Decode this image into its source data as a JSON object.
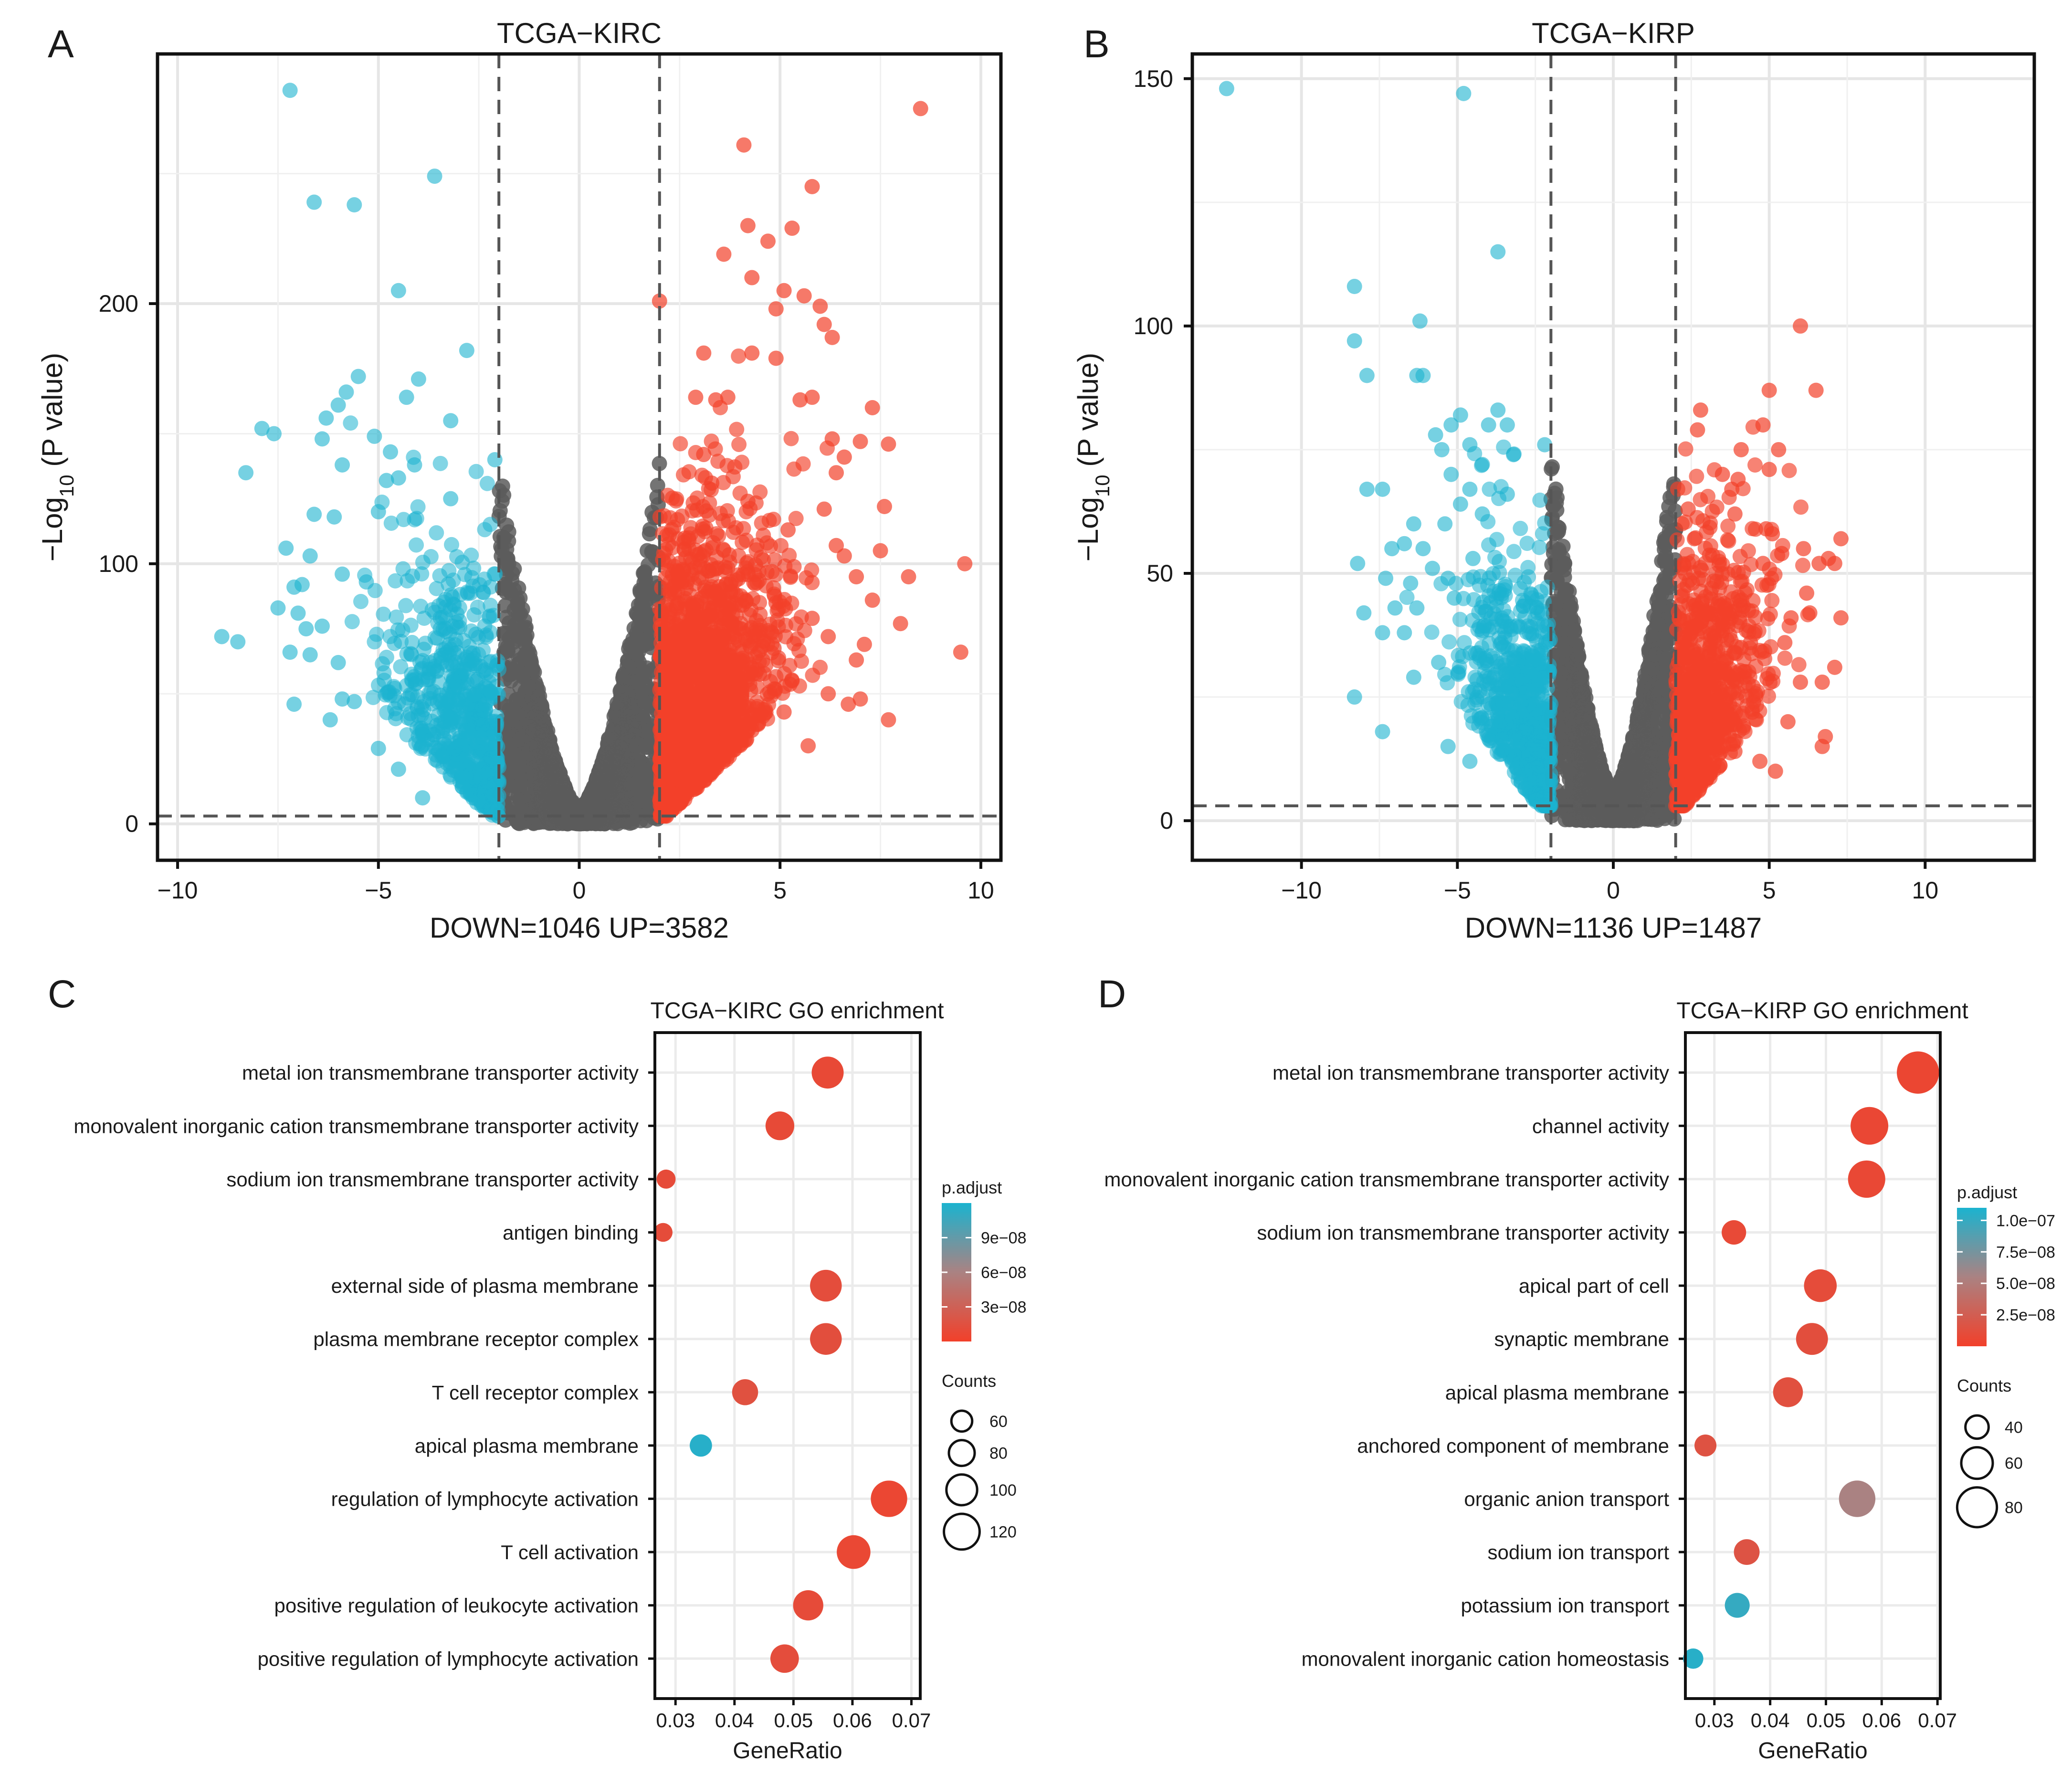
{
  "chart_data": [
    {
      "panel_label": "A",
      "type": "scatter",
      "subtype": "volcano",
      "title": "TCGA−KIRC",
      "ylabel_prefix": "−Log",
      "ylabel_sub": "10",
      "ylabel_suffix": " (P value)",
      "xlabel": "DOWN=1046   UP=3582",
      "xlim": [
        -10.5,
        10.5
      ],
      "ylim": [
        -14,
        296
      ],
      "xticks": [
        -10,
        -5,
        0,
        5,
        10
      ],
      "xtick_labels": [
        "−10",
        "−5",
        "0",
        "5",
        "10"
      ],
      "yticks": [
        0,
        100,
        200
      ],
      "ytick_labels": [
        "0",
        "100",
        "200"
      ],
      "fc_threshold": [
        -2,
        2
      ],
      "p_threshold": 3,
      "counts": {
        "down": 1046,
        "up": 3582
      },
      "colors": {
        "down": "#1bb3cf",
        "up": "#f2402a",
        "ns": "#5c5c5c"
      },
      "highlight_points": {
        "down": [
          [
            -7.2,
            282
          ],
          [
            -3.6,
            249
          ],
          [
            -6.6,
            239
          ],
          [
            -5.6,
            238
          ],
          [
            -4.5,
            205
          ],
          [
            -2.8,
            182
          ],
          [
            -5.5,
            172
          ],
          [
            -4.0,
            171
          ],
          [
            -5.8,
            166
          ],
          [
            -4.3,
            164
          ],
          [
            -6.0,
            161
          ],
          [
            -6.3,
            156
          ],
          [
            -7.9,
            152
          ],
          [
            -5.1,
            149
          ],
          [
            -6.4,
            148
          ],
          [
            -4.7,
            143
          ],
          [
            -4.1,
            138
          ],
          [
            -2.1,
            140
          ],
          [
            -5.9,
            138
          ],
          [
            -8.3,
            135
          ],
          [
            -7.6,
            150
          ],
          [
            -3.2,
            155
          ],
          [
            -6.6,
            119
          ],
          [
            -6.1,
            118
          ],
          [
            -5.0,
            120
          ],
          [
            -3.2,
            125
          ],
          [
            -4.8,
            132
          ],
          [
            -4.5,
            133
          ],
          [
            -7.3,
            106
          ],
          [
            -6.7,
            103
          ],
          [
            -5.9,
            96
          ],
          [
            -5.3,
            93
          ],
          [
            -7.1,
            91
          ],
          [
            -6.9,
            92
          ],
          [
            -7.5,
            83
          ],
          [
            -7.0,
            81
          ],
          [
            -6.4,
            76
          ],
          [
            -6.8,
            75
          ],
          [
            -8.9,
            72
          ],
          [
            -8.5,
            70
          ],
          [
            -7.2,
            66
          ],
          [
            -6.7,
            65
          ],
          [
            -6.0,
            62
          ],
          [
            -7.1,
            46
          ],
          [
            -6.2,
            40
          ],
          [
            -5.9,
            48
          ],
          [
            -5.6,
            47
          ],
          [
            -5.0,
            29
          ],
          [
            -4.5,
            21
          ],
          [
            -3.9,
            10
          ]
        ],
        "up": [
          [
            8.5,
            275
          ],
          [
            4.1,
            261
          ],
          [
            5.8,
            245
          ],
          [
            4.2,
            230
          ],
          [
            5.3,
            229
          ],
          [
            4.7,
            224
          ],
          [
            3.6,
            219
          ],
          [
            4.3,
            210
          ],
          [
            5.1,
            205
          ],
          [
            5.6,
            203
          ],
          [
            2.0,
            201
          ],
          [
            6.0,
            199
          ],
          [
            4.9,
            198
          ],
          [
            6.1,
            192
          ],
          [
            3.1,
            181
          ],
          [
            6.3,
            187
          ],
          [
            4.3,
            181
          ],
          [
            4.9,
            179
          ],
          [
            7.3,
            160
          ],
          [
            3.7,
            164
          ],
          [
            5.5,
            163
          ],
          [
            5.8,
            164
          ],
          [
            2.9,
            164
          ],
          [
            3.4,
            163
          ],
          [
            6.3,
            148
          ],
          [
            7.0,
            147
          ],
          [
            7.7,
            146
          ],
          [
            3.1,
            142
          ],
          [
            6.6,
            141
          ],
          [
            3.3,
            131
          ],
          [
            6.4,
            135
          ],
          [
            6.1,
            121
          ],
          [
            7.6,
            122
          ],
          [
            4.2,
            124
          ],
          [
            5.2,
            113
          ],
          [
            6.4,
            107
          ],
          [
            7.5,
            105
          ],
          [
            6.6,
            103
          ],
          [
            9.6,
            100
          ],
          [
            8.2,
            95
          ],
          [
            6.9,
            95
          ],
          [
            7.3,
            86
          ],
          [
            8.0,
            77
          ],
          [
            4.9,
            85
          ],
          [
            5.8,
            79
          ],
          [
            6.2,
            72
          ],
          [
            7.1,
            69
          ],
          [
            9.5,
            66
          ],
          [
            4.3,
            60
          ],
          [
            5.3,
            55
          ],
          [
            6.2,
            50
          ],
          [
            7.0,
            48
          ],
          [
            7.7,
            40
          ],
          [
            6.7,
            46
          ],
          [
            5.1,
            43
          ],
          [
            4.3,
            36
          ],
          [
            3.4,
            22
          ],
          [
            2.6,
            17
          ],
          [
            5.7,
            30
          ],
          [
            6.9,
            63
          ]
        ]
      }
    },
    {
      "panel_label": "B",
      "type": "scatter",
      "subtype": "volcano",
      "title": "TCGA−KIRP",
      "ylabel_prefix": "−Log",
      "ylabel_sub": "10",
      "ylabel_suffix": " (P value)",
      "xlabel": "DOWN=1136   UP=1487",
      "xlim": [
        -13.5,
        13.5
      ],
      "ylim": [
        -8,
        155
      ],
      "xticks": [
        -10,
        -5,
        0,
        5,
        10
      ],
      "xtick_labels": [
        "−10",
        "−5",
        "0",
        "5",
        "10"
      ],
      "yticks": [
        0,
        50,
        100,
        150
      ],
      "ytick_labels": [
        "0",
        "50",
        "100",
        "150"
      ],
      "fc_threshold": [
        -2,
        2
      ],
      "p_threshold": 3,
      "counts": {
        "down": 1136,
        "up": 1487
      },
      "colors": {
        "down": "#1bb3cf",
        "up": "#f2402a",
        "ns": "#5c5c5c"
      },
      "highlight_points": {
        "down": [
          [
            -12.4,
            148
          ],
          [
            -4.8,
            147
          ],
          [
            -3.7,
            115
          ],
          [
            -8.3,
            108
          ],
          [
            -6.2,
            101
          ],
          [
            -8.3,
            97
          ],
          [
            -7.9,
            90
          ],
          [
            -6.3,
            90
          ],
          [
            -6.1,
            90
          ],
          [
            -4.9,
            82
          ],
          [
            -3.7,
            83
          ],
          [
            -3.4,
            80
          ],
          [
            -5.2,
            80
          ],
          [
            -4.0,
            80
          ],
          [
            -5.7,
            78
          ],
          [
            -4.6,
            76
          ],
          [
            -3.2,
            74
          ],
          [
            -5.5,
            75
          ],
          [
            -4.2,
            72
          ],
          [
            -2.2,
            76
          ],
          [
            -5.2,
            70
          ],
          [
            -4.6,
            67
          ],
          [
            -7.9,
            67
          ],
          [
            -7.4,
            67
          ],
          [
            -4.9,
            64
          ],
          [
            -3.4,
            66
          ],
          [
            -6.4,
            60
          ],
          [
            -5.4,
            60
          ],
          [
            -4.2,
            62
          ],
          [
            -7.1,
            55
          ],
          [
            -6.7,
            56
          ],
          [
            -6.1,
            55
          ],
          [
            -5.8,
            51
          ],
          [
            -4.5,
            53
          ],
          [
            -8.2,
            52
          ],
          [
            -7.3,
            49
          ],
          [
            -6.5,
            48
          ],
          [
            -5.3,
            49
          ],
          [
            -7.0,
            43
          ],
          [
            -8.0,
            42
          ],
          [
            -6.3,
            43
          ],
          [
            -5.1,
            45
          ],
          [
            -7.4,
            38
          ],
          [
            -6.7,
            38
          ],
          [
            -5.6,
            32
          ],
          [
            -6.4,
            29
          ],
          [
            -8.3,
            25
          ],
          [
            -7.4,
            18
          ],
          [
            -5.3,
            15
          ],
          [
            -4.6,
            12
          ]
        ],
        "up": [
          [
            6.0,
            100
          ],
          [
            6.5,
            87
          ],
          [
            5.0,
            87
          ],
          [
            2.8,
            83
          ],
          [
            4.8,
            80
          ],
          [
            2.7,
            79
          ],
          [
            4.1,
            75
          ],
          [
            5.3,
            75
          ],
          [
            5.0,
            71
          ],
          [
            3.5,
            70
          ],
          [
            4.0,
            69
          ],
          [
            3.8,
            67
          ],
          [
            2.4,
            63
          ],
          [
            3.9,
            62
          ],
          [
            5.1,
            58
          ],
          [
            4.9,
            59
          ],
          [
            2.6,
            57
          ],
          [
            5.4,
            54
          ],
          [
            6.1,
            55
          ],
          [
            7.3,
            57
          ],
          [
            6.6,
            52
          ],
          [
            6.9,
            53
          ],
          [
            7.1,
            52
          ],
          [
            3.3,
            50
          ],
          [
            4.8,
            52
          ],
          [
            6.2,
            46
          ],
          [
            7.3,
            41
          ],
          [
            5.7,
            41
          ],
          [
            6.3,
            42
          ],
          [
            5.5,
            36
          ],
          [
            4.4,
            36
          ],
          [
            7.1,
            31
          ],
          [
            6.7,
            28
          ],
          [
            6.0,
            28
          ],
          [
            3.2,
            40
          ],
          [
            4.1,
            35
          ],
          [
            2.9,
            30
          ],
          [
            6.8,
            17
          ],
          [
            6.7,
            15
          ],
          [
            5.6,
            20
          ],
          [
            3.4,
            18
          ],
          [
            4.7,
            12
          ],
          [
            5.2,
            10
          ],
          [
            3.9,
            14
          ],
          [
            4.5,
            24
          ]
        ]
      }
    },
    {
      "panel_label": "C",
      "type": "scatter",
      "subtype": "dotplot",
      "title": "TCGA−KIRC GO enrichment",
      "xlabel": "GeneRatio",
      "xlim": [
        0.0265,
        0.0715
      ],
      "xticks": [
        0.03,
        0.04,
        0.05,
        0.06,
        0.07
      ],
      "xtick_labels": [
        "0.03",
        "0.04",
        "0.05",
        "0.06",
        "0.07"
      ],
      "categories": [
        "metal ion transmembrane transporter activity",
        "monovalent inorganic cation transmembrane transporter activity",
        "sodium ion transmembrane transporter activity",
        "antigen binding",
        "external side of plasma membrane",
        "plasma membrane receptor complex",
        "T cell receptor complex",
        "apical plasma membrane",
        "regulation of lymphocyte activation",
        "T cell activation",
        "positive regulation of leukocyte activation",
        "positive regulation of lymphocyte activation"
      ],
      "gene_ratio": [
        0.0558,
        0.0477,
        0.0284,
        0.0279,
        0.0555,
        0.0555,
        0.0418,
        0.0343,
        0.0662,
        0.0602,
        0.0525,
        0.0485
      ],
      "counts": [
        105,
        92,
        53,
        52,
        104,
        104,
        81,
        66,
        123,
        112,
        98,
        91
      ],
      "p_adjust": [
        8e-09,
        9e-09,
        1e-08,
        1.1e-08,
        1.2e-08,
        1.3e-08,
        1.5e-08,
        1.15e-07,
        6e-09,
        7e-09,
        1e-08,
        1.2e-08
      ],
      "legend": {
        "color_title": "p.adjust",
        "color_ticks": [
          9e-08,
          6e-08,
          3e-08
        ],
        "color_tick_labels": [
          "9e−08",
          "6e−08",
          "3e−08"
        ],
        "color_range": [
          0,
          1.2e-07
        ],
        "size_title": "Counts",
        "size_values": [
          60,
          80,
          100,
          120
        ],
        "size_labels": [
          "60",
          "80",
          "100",
          "120"
        ],
        "position": "right"
      },
      "colors": {
        "low": "#f2402a",
        "high": "#1bb3cf"
      }
    },
    {
      "panel_label": "D",
      "type": "scatter",
      "subtype": "dotplot",
      "title": "TCGA−KIRP GO enrichment",
      "xlabel": "GeneRatio",
      "xlim": [
        0.0248,
        0.0705
      ],
      "xticks": [
        0.03,
        0.04,
        0.05,
        0.06,
        0.07
      ],
      "xtick_labels": [
        "0.03",
        "0.04",
        "0.05",
        "0.06",
        "0.07"
      ],
      "categories": [
        "metal ion transmembrane transporter activity",
        "channel activity",
        "monovalent inorganic cation transmembrane transporter activity",
        "sodium ion transmembrane transporter activity",
        "apical part of cell",
        "synaptic membrane",
        "apical plasma membrane",
        "anchored component of membrane",
        "organic anion transport",
        "sodium ion transport",
        "potassium ion transport",
        "monovalent inorganic cation homeostasis"
      ],
      "gene_ratio": [
        0.0665,
        0.0578,
        0.0573,
        0.0335,
        0.049,
        0.0475,
        0.0432,
        0.0284,
        0.0556,
        0.0358,
        0.0341,
        0.0262
      ],
      "counts": [
        86,
        75,
        74,
        43,
        63,
        61,
        56,
        37,
        72,
        46,
        44,
        33
      ],
      "p_adjust": [
        5e-09,
        6e-09,
        7e-09,
        8e-09,
        1e-08,
        1.2e-08,
        1.3e-08,
        1.5e-08,
        5.5e-08,
        1.6e-08,
        1e-07,
        1.05e-07
      ],
      "legend": {
        "color_title": "p.adjust",
        "color_ticks": [
          1e-07,
          7.5e-08,
          5e-08,
          2.5e-08
        ],
        "color_tick_labels": [
          "1.0e−07",
          "7.5e−08",
          "5.0e−08",
          "2.5e−08"
        ],
        "color_range": [
          0,
          1.1e-07
        ],
        "size_title": "Counts",
        "size_values": [
          40,
          60,
          80
        ],
        "size_labels": [
          "40",
          "60",
          "80"
        ],
        "position": "right"
      },
      "colors": {
        "low": "#f2402a",
        "high": "#1bb3cf"
      }
    }
  ]
}
